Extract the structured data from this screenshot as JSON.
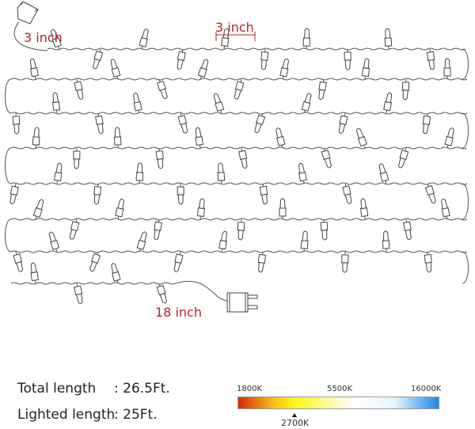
{
  "labels": {
    "socket_lead": "3 inch",
    "bulb_spacing": "3 inch",
    "plug_lead": "18 inch"
  },
  "specs": [
    {
      "label": "Total length",
      "value": ": 26.5Ft."
    },
    {
      "label": "Lighted length",
      "value": ": 25Ft."
    }
  ],
  "color_temperature": {
    "ticks": [
      "1800K",
      "5500K",
      "16000K"
    ],
    "selected": "2700K",
    "gradient": [
      "#d42a0f",
      "#f7c21a",
      "#fff51c",
      "#ffffff",
      "#e6f6fb",
      "#1f86e8"
    ]
  },
  "icons": [
    "end-socket-icon",
    "bulb-icon",
    "plug-icon"
  ]
}
